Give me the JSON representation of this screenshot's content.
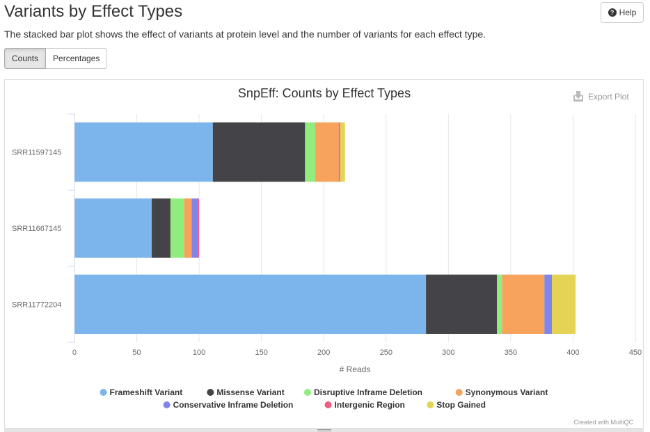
{
  "header": {
    "title": "Variants by Effect Types",
    "description": "The stacked bar plot shows the effect of variants at protein level and the number of variants for each effect type.",
    "help_label": "Help"
  },
  "toggle": {
    "counts_label": "Counts",
    "percentages_label": "Percentages"
  },
  "export_label": "Export Plot",
  "credit": "Created with MultiQC",
  "chart_data": {
    "type": "bar",
    "orientation": "horizontal",
    "stacked": true,
    "title": "SnpEff: Counts by Effect Types",
    "xlabel": "# Reads",
    "ylabel": "",
    "xlim": [
      0,
      450
    ],
    "xticks": [
      0,
      50,
      100,
      150,
      200,
      250,
      300,
      350,
      400,
      450
    ],
    "grid": true,
    "legend_position": "bottom",
    "categories": [
      "SRR11597145",
      "SRR11667145",
      "SRR11772204"
    ],
    "series": [
      {
        "name": "Frameshift Variant",
        "color": "#7cb5ec",
        "values": [
          111,
          62,
          282
        ]
      },
      {
        "name": "Missense Variant",
        "color": "#434348",
        "values": [
          74,
          15,
          57
        ]
      },
      {
        "name": "Disruptive Inframe Deletion",
        "color": "#90ed7d",
        "values": [
          8,
          11,
          4
        ]
      },
      {
        "name": "Synonymous Variant",
        "color": "#f7a35c",
        "values": [
          19,
          6,
          34
        ]
      },
      {
        "name": "Conservative Inframe Deletion",
        "color": "#8085e9",
        "values": [
          0,
          5,
          6
        ]
      },
      {
        "name": "Intergenic Region",
        "color": "#f15c80",
        "values": [
          1,
          1,
          0
        ]
      },
      {
        "name": "Stop Gained",
        "color": "#e4d354",
        "values": [
          4,
          0,
          19
        ]
      }
    ]
  }
}
